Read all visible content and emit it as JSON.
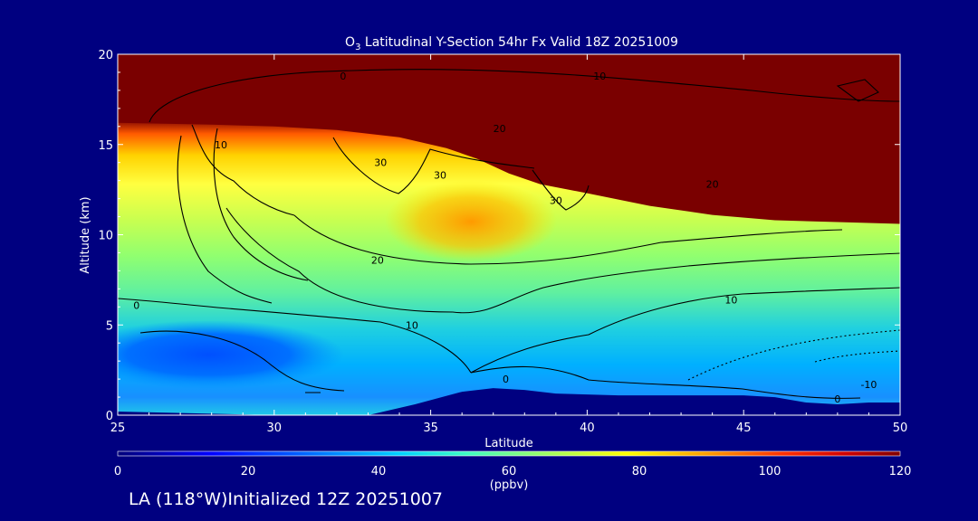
{
  "chart_data": {
    "type": "heatmap",
    "title_prefix": "O",
    "title_sub": "3",
    "title_rest": " Latitudinal Y-Section 54hr  Fx Valid 18Z 20251009",
    "xlabel": "Latitude",
    "ylabel": "Altitude (km)",
    "xlim": [
      25,
      50
    ],
    "ylim": [
      0,
      20
    ],
    "x_ticks": [
      "25",
      "30",
      "35",
      "40",
      "45",
      "50"
    ],
    "y_ticks": [
      "0",
      "5",
      "10",
      "15",
      "20"
    ],
    "colorbar": {
      "ticks": [
        "0",
        "20",
        "40",
        "60",
        "80",
        "100",
        "120"
      ],
      "range": [
        0,
        120
      ],
      "unit_label": "(ppbv)"
    },
    "terrain_km": [
      [
        25,
        0.2
      ],
      [
        30,
        0
      ],
      [
        33,
        0
      ],
      [
        34.5,
        0.6
      ],
      [
        36,
        1.3
      ],
      [
        37,
        1.5
      ],
      [
        38,
        1.4
      ],
      [
        39,
        1.2
      ],
      [
        41,
        1.1
      ],
      [
        43,
        1.1
      ],
      [
        45,
        1.1
      ],
      [
        46,
        1.0
      ],
      [
        47,
        0.7
      ],
      [
        48,
        0.6
      ],
      [
        49,
        0.7
      ],
      [
        50,
        0.7
      ]
    ],
    "tropopause_km": [
      [
        25,
        16.2
      ],
      [
        28,
        16.1
      ],
      [
        30,
        16.0
      ],
      [
        32,
        15.8
      ],
      [
        34,
        15.4
      ],
      [
        35.5,
        14.8
      ],
      [
        36.5,
        14.2
      ],
      [
        37.5,
        13.4
      ],
      [
        38.5,
        12.8
      ],
      [
        40,
        12.3
      ],
      [
        42,
        11.6
      ],
      [
        44,
        11.1
      ],
      [
        46,
        10.8
      ],
      [
        48,
        10.7
      ],
      [
        50,
        10.6
      ]
    ],
    "contour_labels": [
      {
        "text": "0",
        "lat": 32.2,
        "alt": 18.8
      },
      {
        "text": "10",
        "lat": 40.4,
        "alt": 18.8
      },
      {
        "text": "10",
        "lat": 28.3,
        "alt": 15.0
      },
      {
        "text": "20",
        "lat": 37.2,
        "alt": 15.9
      },
      {
        "text": "30",
        "lat": 33.4,
        "alt": 14.0
      },
      {
        "text": "30",
        "lat": 35.3,
        "alt": 13.3
      },
      {
        "text": "30",
        "lat": 39.0,
        "alt": 11.9
      },
      {
        "text": "20",
        "lat": 44.0,
        "alt": 12.8
      },
      {
        "text": "20",
        "lat": 33.3,
        "alt": 8.6
      },
      {
        "text": "10",
        "lat": 44.6,
        "alt": 6.4
      },
      {
        "text": "10",
        "lat": 34.4,
        "alt": 5.0
      },
      {
        "text": "0",
        "lat": 25.6,
        "alt": 6.1
      },
      {
        "text": "0",
        "lat": 37.4,
        "alt": 2.0
      },
      {
        "text": "0",
        "lat": 48.0,
        "alt": 0.9
      },
      {
        "text": "-10",
        "lat": 49.0,
        "alt": 1.7
      }
    ]
  },
  "footer": "LA (118°W)Initialized 12Z 20251007"
}
